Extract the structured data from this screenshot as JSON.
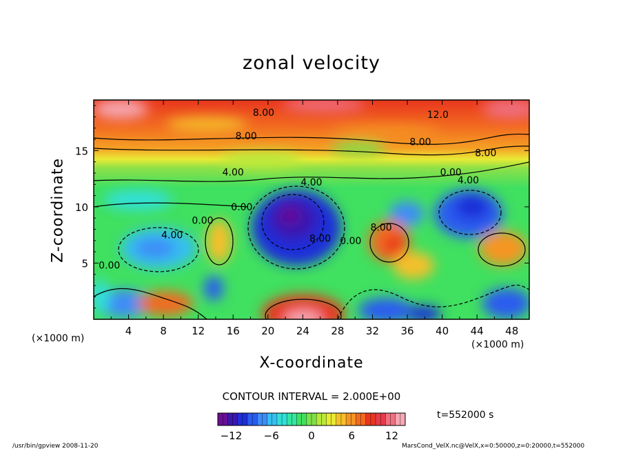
{
  "chart_data": {
    "type": "heatmap",
    "title": "zonal velocity",
    "xlabel": "X-coordinate",
    "ylabel": "Z-coordinate",
    "x_unit_label": "(×1000 m)",
    "x_ticks": [
      4,
      8,
      12,
      16,
      20,
      24,
      28,
      32,
      36,
      40,
      44,
      48
    ],
    "y_ticks": [
      5,
      10,
      15
    ],
    "xlim": [
      0,
      50
    ],
    "ylim": [
      0,
      19.5
    ],
    "contour_interval_text": "CONTOUR INTERVAL = 2.000E+00",
    "time_text": "t=552000 s",
    "colorbar": {
      "range": [
        -14,
        14
      ],
      "ticks": [
        "−12",
        "−6",
        "0",
        "6",
        "12"
      ],
      "tick_values": [
        -12,
        -6,
        0,
        6,
        12
      ],
      "colors": [
        "#6a0f95",
        "#3a18b0",
        "#1f2fd8",
        "#2a5cf0",
        "#3d8cf7",
        "#34c0f0",
        "#30e0d8",
        "#33e6a0",
        "#40e060",
        "#7ee048",
        "#b8e83a",
        "#e8ea34",
        "#f5c02a",
        "#f59524",
        "#f26a20",
        "#e8361e",
        "#e83a4a",
        "#f07080",
        "#f6a8b4"
      ]
    },
    "contour_labels": [
      {
        "text": "8.00",
        "x": 19.5,
        "y": 18.4
      },
      {
        "text": "12.0",
        "x": 39.5,
        "y": 18.2
      },
      {
        "text": "8.00",
        "x": 17.5,
        "y": 16.3
      },
      {
        "text": "8.00",
        "x": 37.5,
        "y": 15.8
      },
      {
        "text": "8.00",
        "x": 45.0,
        "y": 14.8
      },
      {
        "text": "4.00",
        "x": 16.0,
        "y": 13.1
      },
      {
        "text": "0.00",
        "x": 41.0,
        "y": 13.1
      },
      {
        "text": "4.00",
        "x": 43.0,
        "y": 12.4
      },
      {
        "text": "4.00",
        "x": 25.0,
        "y": 12.2
      },
      {
        "text": "0.00",
        "x": 17.0,
        "y": 10.0
      },
      {
        "text": "0.00",
        "x": 12.5,
        "y": 8.8
      },
      {
        "text": "4.00",
        "x": 9.0,
        "y": 7.5
      },
      {
        "text": "8.00",
        "x": 26.0,
        "y": 7.2
      },
      {
        "text": "0.00",
        "x": 29.5,
        "y": 7.0
      },
      {
        "text": "8.00",
        "x": 33.0,
        "y": 8.2
      },
      {
        "text": "0.00",
        "x": 1.8,
        "y": 4.8
      }
    ]
  },
  "footer": {
    "left": "/usr/bin/gpview   2008-11-20",
    "right": "MarsCond_VelX.nc@VelX,x=0:50000,z=0:20000,t=552000"
  }
}
